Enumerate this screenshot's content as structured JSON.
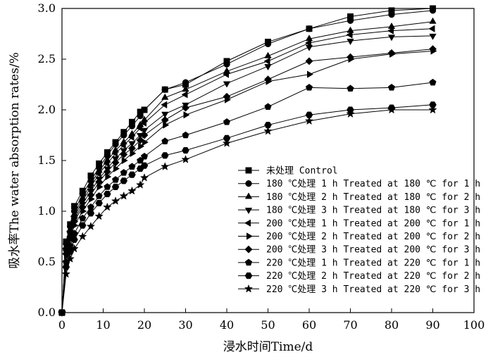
{
  "chart_data": {
    "type": "line",
    "title": "",
    "xlabel": "浸水时间Time/d",
    "ylabel": "吸水率The water absorption rates/%",
    "xlim": [
      0,
      100
    ],
    "ylim": [
      0,
      3.0
    ],
    "xticks": [
      "0",
      "10",
      "20",
      "30",
      "40",
      "50",
      "60",
      "70",
      "80",
      "90",
      "100"
    ],
    "yticks": [
      "0.0",
      "0.5",
      "1.0",
      "1.5",
      "2.0",
      "2.5",
      "3.0"
    ],
    "grid": false,
    "legend_position": "bottom-right",
    "series": [
      {
        "name": "未处理 Control",
        "marker": "square",
        "x": [
          0,
          1,
          2,
          3,
          5,
          7,
          9,
          11,
          13,
          15,
          17,
          19,
          20,
          25,
          30,
          40,
          50,
          60,
          70,
          80,
          90
        ],
        "y": [
          0,
          0.7,
          0.87,
          1.05,
          1.2,
          1.35,
          1.47,
          1.58,
          1.68,
          1.78,
          1.88,
          1.98,
          2.0,
          2.2,
          2.25,
          2.48,
          2.67,
          2.8,
          2.92,
          2.98,
          3.0
        ]
      },
      {
        "name": "180 ℃处理 1 h Treated at 180 ℃ for 1 h",
        "marker": "circle",
        "x": [
          0,
          1,
          2,
          3,
          5,
          7,
          9,
          11,
          13,
          15,
          17,
          19,
          20,
          25,
          30,
          40,
          50,
          60,
          70,
          80,
          90
        ],
        "y": [
          0,
          0.68,
          0.85,
          1.0,
          1.17,
          1.3,
          1.43,
          1.55,
          1.66,
          1.75,
          1.84,
          1.94,
          2.0,
          2.2,
          2.27,
          2.45,
          2.65,
          2.8,
          2.88,
          2.94,
          2.98
        ]
      },
      {
        "name": "180 ℃处理 2 h Treated at 180 ℃ for 2 h",
        "marker": "triangle-up",
        "x": [
          0,
          1,
          2,
          3,
          5,
          7,
          9,
          11,
          13,
          15,
          17,
          19,
          20,
          25,
          30,
          40,
          50,
          60,
          70,
          80,
          90
        ],
        "y": [
          0,
          0.65,
          0.82,
          0.97,
          1.13,
          1.27,
          1.4,
          1.5,
          1.6,
          1.68,
          1.76,
          1.85,
          1.9,
          2.12,
          2.2,
          2.38,
          2.53,
          2.7,
          2.78,
          2.82,
          2.87
        ]
      },
      {
        "name": "180 ℃处理 3 h Treated at 180 ℃ for 3 h",
        "marker": "triangle-down",
        "x": [
          0,
          1,
          2,
          3,
          5,
          7,
          9,
          11,
          13,
          15,
          17,
          19,
          20,
          25,
          30,
          40,
          50,
          60,
          70,
          80,
          90
        ],
        "y": [
          0,
          0.6,
          0.77,
          0.92,
          1.07,
          1.2,
          1.32,
          1.42,
          1.52,
          1.6,
          1.67,
          1.75,
          1.8,
          1.96,
          2.05,
          2.26,
          2.43,
          2.62,
          2.68,
          2.72,
          2.73
        ]
      },
      {
        "name": "200 ℃处理 1 h Treated at 200 ℃ for 1 h",
        "marker": "triangle-left",
        "x": [
          0,
          1,
          2,
          3,
          5,
          7,
          9,
          11,
          13,
          15,
          17,
          19,
          20,
          25,
          30,
          40,
          50,
          60,
          70,
          80,
          90
        ],
        "y": [
          0,
          0.63,
          0.8,
          0.95,
          1.1,
          1.24,
          1.37,
          1.47,
          1.57,
          1.65,
          1.73,
          1.82,
          1.87,
          2.05,
          2.15,
          2.35,
          2.48,
          2.66,
          2.74,
          2.78,
          2.8
        ]
      },
      {
        "name": "200 ℃处理 2 h Treated at 200 ℃ for 2 h",
        "marker": "triangle-right",
        "x": [
          0,
          1,
          2,
          3,
          5,
          7,
          9,
          11,
          13,
          15,
          17,
          19,
          20,
          25,
          30,
          40,
          50,
          60,
          70,
          80,
          90
        ],
        "y": [
          0,
          0.56,
          0.72,
          0.86,
          1.0,
          1.12,
          1.24,
          1.34,
          1.42,
          1.5,
          1.57,
          1.64,
          1.68,
          1.85,
          1.95,
          2.1,
          2.28,
          2.35,
          2.5,
          2.55,
          2.58
        ]
      },
      {
        "name": "200 ℃处理 3 h Treated at 200 ℃ for 3 h",
        "marker": "diamond",
        "x": [
          0,
          1,
          2,
          3,
          5,
          7,
          9,
          11,
          13,
          15,
          17,
          19,
          20,
          25,
          30,
          40,
          50,
          60,
          70,
          80,
          90
        ],
        "y": [
          0,
          0.58,
          0.75,
          0.9,
          1.04,
          1.16,
          1.29,
          1.39,
          1.48,
          1.56,
          1.62,
          1.7,
          1.75,
          1.9,
          2.02,
          2.13,
          2.3,
          2.48,
          2.52,
          2.56,
          2.6
        ]
      },
      {
        "name": "220 ℃处理 1 h Treated at 220 ℃ for 1 h",
        "marker": "pentagon",
        "x": [
          0,
          1,
          2,
          3,
          5,
          7,
          9,
          11,
          13,
          15,
          17,
          19,
          20,
          25,
          30,
          40,
          50,
          60,
          70,
          80,
          90
        ],
        "y": [
          0,
          0.5,
          0.66,
          0.78,
          0.93,
          1.04,
          1.15,
          1.24,
          1.31,
          1.38,
          1.44,
          1.5,
          1.54,
          1.69,
          1.75,
          1.88,
          2.03,
          2.22,
          2.21,
          2.22,
          2.27
        ]
      },
      {
        "name": "220 ℃处理 2 h Treated at 220 ℃ for 2 h",
        "marker": "hexagon",
        "x": [
          0,
          1,
          2,
          3,
          5,
          7,
          9,
          11,
          13,
          15,
          17,
          19,
          20,
          25,
          30,
          40,
          50,
          60,
          70,
          80,
          90
        ],
        "y": [
          0,
          0.45,
          0.6,
          0.72,
          0.86,
          0.98,
          1.08,
          1.17,
          1.24,
          1.3,
          1.36,
          1.42,
          1.45,
          1.55,
          1.6,
          1.72,
          1.85,
          1.95,
          2.0,
          2.02,
          2.05
        ]
      },
      {
        "name": "220 ℃处理 3 h Treated at 220 ℃ for 3 h",
        "marker": "star",
        "x": [
          0,
          1,
          2,
          3,
          5,
          7,
          9,
          11,
          13,
          15,
          17,
          19,
          20,
          25,
          30,
          40,
          50,
          60,
          70,
          80,
          90
        ],
        "y": [
          0,
          0.38,
          0.53,
          0.63,
          0.75,
          0.85,
          0.95,
          1.04,
          1.1,
          1.15,
          1.2,
          1.26,
          1.33,
          1.44,
          1.51,
          1.67,
          1.79,
          1.89,
          1.96,
          2.0,
          2.0
        ]
      }
    ]
  }
}
